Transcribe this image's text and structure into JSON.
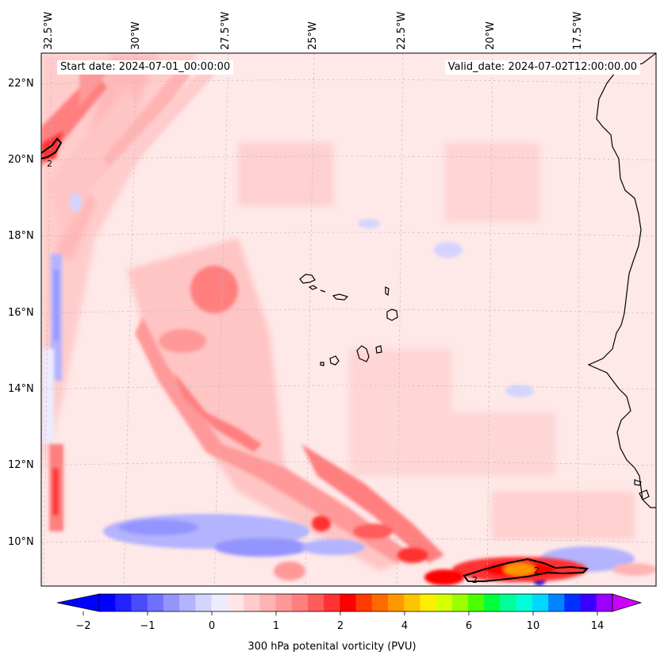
{
  "header": {
    "start_date": "Start date: 2024-07-01_00:00:00",
    "valid_date": "Valid_date: 2024-07-02T12:00:00.00"
  },
  "longitudes": [
    "32.5°W",
    "30°W",
    "27.5°W",
    "25°W",
    "22.5°W",
    "20°W",
    "17.5°W"
  ],
  "latitudes": [
    "22°N",
    "20°N",
    "18°N",
    "16°N",
    "14°N",
    "12°N",
    "10°N"
  ],
  "contour_label": "2",
  "colorbar": {
    "ticks": [
      "−2",
      "−1",
      "0",
      "1",
      "2",
      "4",
      "6",
      "10",
      "14"
    ],
    "title": "300 hPa potenital vorticity (PVU)",
    "colors": [
      "#0000ff",
      "#2222ff",
      "#4a4aff",
      "#7070ff",
      "#9494ff",
      "#b3b3ff",
      "#d4d4ff",
      "#ececff",
      "#ffe6e6",
      "#ffcccc",
      "#ffb3b3",
      "#ff9999",
      "#ff7f7f",
      "#ff5c5c",
      "#ff3333",
      "#ff0000",
      "#ff3a00",
      "#ff6a00",
      "#ff9800",
      "#ffc400",
      "#ffee00",
      "#d6ff00",
      "#9cff00",
      "#4cff00",
      "#00ff3c",
      "#00ff9a",
      "#00ffd8",
      "#00d8ff",
      "#0084ff",
      "#0030ff",
      "#3a00ff",
      "#9c00ff"
    ]
  }
}
